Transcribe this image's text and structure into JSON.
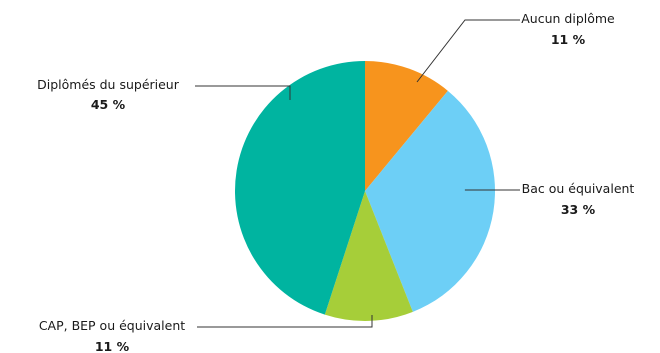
{
  "chart_data": {
    "type": "pie",
    "start_angle_deg": 0,
    "direction": "clockwise",
    "slices": [
      {
        "label": "Aucun diplôme",
        "value": 11,
        "value_label": "11 %",
        "color": "#f7941d"
      },
      {
        "label": "Bac ou équivalent",
        "value": 33,
        "value_label": "33 %",
        "color": "#6dcff6"
      },
      {
        "label": "CAP, BEP ou équivalent",
        "value": 11,
        "value_label": "11 %",
        "color": "#a6ce39"
      },
      {
        "label": "Diplômés du supérieur",
        "value": 45,
        "value_label": "45 %",
        "color": "#00b4a0"
      }
    ]
  }
}
